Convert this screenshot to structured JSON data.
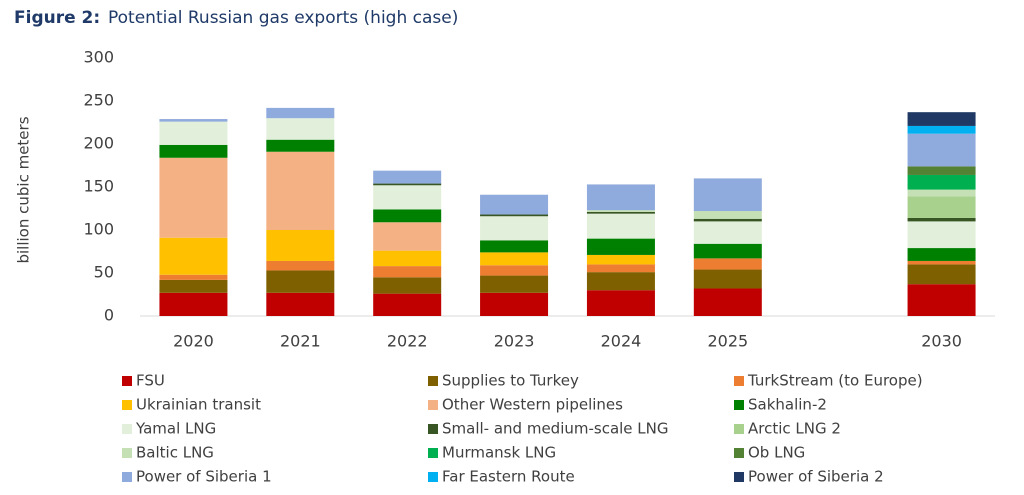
{
  "chart_data": {
    "type": "bar",
    "stacked": true,
    "title_label": "Figure 2:",
    "title": "Potential Russian gas exports (high case)",
    "y_label": "billion cubic meters",
    "categories": [
      "2020",
      "2021",
      "2022",
      "2023",
      "2024",
      "2025",
      null,
      "2030"
    ],
    "ylim": [
      0,
      300
    ],
    "yticks": [
      0,
      50,
      100,
      150,
      200,
      250,
      300
    ],
    "series": [
      {
        "name": "FSU",
        "color": "#c00000",
        "values": [
          27,
          27,
          26,
          27,
          30,
          32,
          null,
          37
        ]
      },
      {
        "name": "Supplies to Turkey",
        "color": "#7f6000",
        "values": [
          15,
          26,
          19,
          20,
          21,
          22,
          null,
          23
        ]
      },
      {
        "name": "TurkStream (to Europe)",
        "color": "#ed7d31",
        "values": [
          6,
          11,
          13,
          12,
          9,
          13,
          null,
          4
        ]
      },
      {
        "name": "Ukrainian transit",
        "color": "#ffc000",
        "values": [
          43,
          36,
          18,
          15,
          11,
          0,
          null,
          0
        ]
      },
      {
        "name": "Other Western pipelines",
        "color": "#f4b183",
        "values": [
          93,
          91,
          33,
          0,
          0,
          0,
          null,
          0
        ]
      },
      {
        "name": "Sakhalin-2",
        "color": "#008000",
        "values": [
          15,
          14,
          15,
          14,
          19,
          17,
          null,
          15
        ]
      },
      {
        "name": "Yamal LNG",
        "color": "#e2efda",
        "values": [
          27,
          25,
          28,
          28,
          29,
          26,
          null,
          31
        ]
      },
      {
        "name": "Small- and medium-scale LNG",
        "color": "#375623",
        "values": [
          0,
          0,
          2,
          2,
          2,
          3,
          null,
          4
        ]
      },
      {
        "name": "Arctic LNG 2",
        "color": "#a9d18e",
        "values": [
          0,
          0,
          0,
          0,
          0,
          0,
          null,
          25
        ]
      },
      {
        "name": "Baltic LNG",
        "color": "#c5e0b4",
        "values": [
          0,
          0,
          0,
          0,
          2,
          9,
          null,
          8
        ]
      },
      {
        "name": "Murmansk LNG",
        "color": "#00b050",
        "values": [
          0,
          0,
          0,
          0,
          0,
          0,
          null,
          17
        ]
      },
      {
        "name": "Ob LNG",
        "color": "#548235",
        "values": [
          0,
          0,
          0,
          0,
          0,
          0,
          null,
          10
        ]
      },
      {
        "name": "Power of Siberia 1",
        "color": "#8faadc",
        "values": [
          3,
          12,
          15,
          23,
          30,
          38,
          null,
          38
        ]
      },
      {
        "name": "Far Eastern Route",
        "color": "#00b0f0",
        "values": [
          0,
          0,
          0,
          0,
          0,
          0,
          null,
          9
        ]
      },
      {
        "name": "Power of Siberia 2",
        "color": "#1f3864",
        "values": [
          0,
          0,
          0,
          0,
          0,
          0,
          null,
          16
        ]
      }
    ]
  }
}
